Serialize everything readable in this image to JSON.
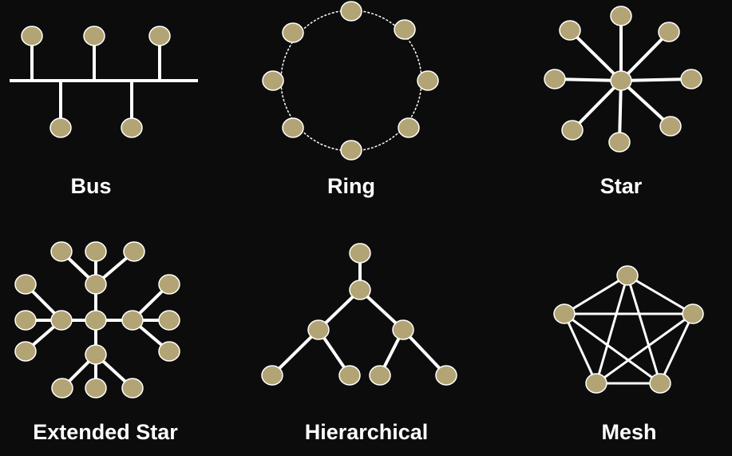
{
  "colors": {
    "background": "#0d0c0c",
    "node_fill": "#b3a475",
    "node_stroke": "#ffffff",
    "link": "#ffffff",
    "label": "#ffffff"
  },
  "topologies": [
    {
      "id": "bus",
      "label": "Bus"
    },
    {
      "id": "ring",
      "label": "Ring"
    },
    {
      "id": "star",
      "label": "Star"
    },
    {
      "id": "extended-star",
      "label": "Extended Star"
    },
    {
      "id": "hierarchical",
      "label": "Hierarchical"
    },
    {
      "id": "mesh",
      "label": "Mesh"
    }
  ]
}
